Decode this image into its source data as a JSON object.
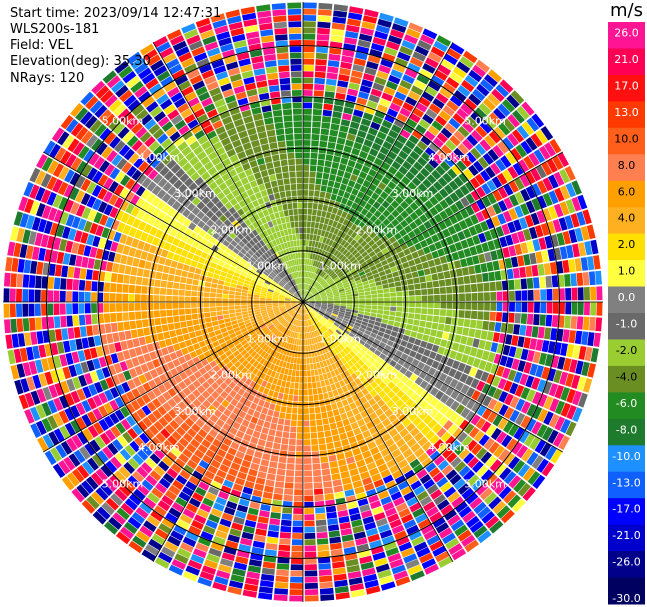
{
  "info": {
    "start_time": "Start time: 2023/09/14 12:47:31",
    "instrument": "WLS200s-181",
    "field": "Field: VEL",
    "elevation": "Elevation(deg): 35.30",
    "nrays": "NRays: 120"
  },
  "colorbar": {
    "unit": "m/s",
    "ticks": [
      "26.0",
      "21.0",
      "17.0",
      "13.0",
      "10.0",
      "8.0",
      "6.0",
      "4.0",
      "2.0",
      "1.0",
      "0.0",
      "-1.0",
      "-2.0",
      "-4.0",
      "-6.0",
      "-8.0",
      "-10.0",
      "-13.0",
      "-17.0",
      "-21.0",
      "-26.0",
      "-30.0"
    ],
    "colors": [
      "#ff1493",
      "#ff0055",
      "#ff1010",
      "#ff3a00",
      "#ff5f1a",
      "#ff7f50",
      "#ffa000",
      "#ffb020",
      "#ffe000",
      "#ffff40",
      "#808080",
      "#696969",
      "#9acd32",
      "#6b8e23",
      "#228b22",
      "#1e7b2e",
      "#1e90ff",
      "#1060ff",
      "#0000ff",
      "#0000cd",
      "#00008b",
      "#000060"
    ],
    "top_label_color": "#ff1493"
  },
  "chart_data": {
    "type": "heatmap",
    "subtype": "polar PPI",
    "field": "VEL",
    "unit": "m/s",
    "nrays": 120,
    "range_rings": [
      {
        "label": "1.00km"
      },
      {
        "label": "2.00km"
      },
      {
        "label": "3.00km"
      },
      {
        "label": "4.00km"
      },
      {
        "label": "5.00km"
      }
    ],
    "value_range": [
      -30,
      30
    ],
    "pattern": "negative (green) velocities toward north/east near center, positive (yellow/orange) toward south/west; noisy far ranges"
  }
}
